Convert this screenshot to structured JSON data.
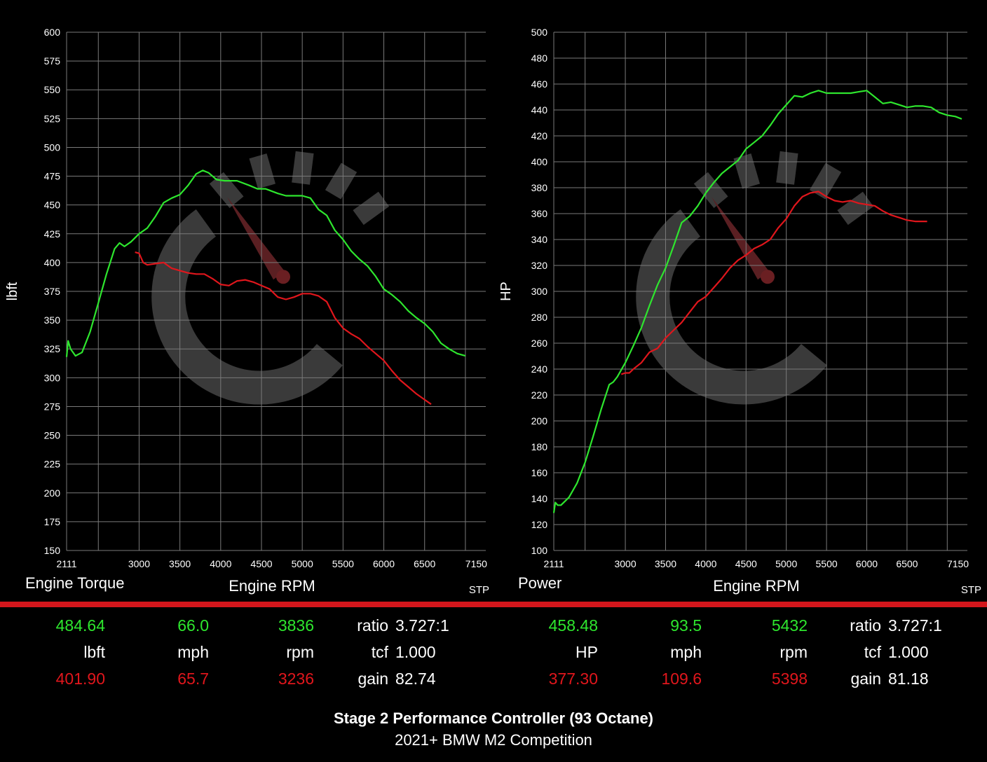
{
  "footer": {
    "title": "Stage 2 Performance Controller (93 Octane)",
    "subtitle": "2021+ BMW M2 Competition"
  },
  "colors": {
    "after": "#2ee62e",
    "before": "#e0161c",
    "divider": "#d4161c",
    "watermark": "#3a3a3a"
  },
  "watermark_icon": "tachometer-c-logo",
  "panels": [
    {
      "caption": "Engine Torque",
      "xlabel": "Engine RPM",
      "ylabel": "lbft",
      "correction": "STP",
      "readout": {
        "after": {
          "value": "484.64",
          "speed": "66.0",
          "rpm": "3836"
        },
        "units": {
          "value": "lbft",
          "speed": "mph",
          "rpm": "rpm"
        },
        "before": {
          "value": "401.90",
          "speed": "65.7",
          "rpm": "3236"
        },
        "ratio_label": "ratio",
        "ratio": "3.727:1",
        "tcf_label": "tcf",
        "tcf": "1.000",
        "gain_label": "gain",
        "gain": "82.74"
      }
    },
    {
      "caption": "Power",
      "xlabel": "Engine RPM",
      "ylabel": "HP",
      "correction": "STP",
      "readout": {
        "after": {
          "value": "458.48",
          "speed": "93.5",
          "rpm": "5432"
        },
        "units": {
          "value": "HP",
          "speed": "mph",
          "rpm": "rpm"
        },
        "before": {
          "value": "377.30",
          "speed": "109.6",
          "rpm": "5398"
        },
        "ratio_label": "ratio",
        "ratio": "3.727:1",
        "tcf_label": "tcf",
        "tcf": "1.000",
        "gain_label": "gain",
        "gain": "81.18"
      }
    }
  ],
  "chart_data": [
    {
      "type": "line",
      "xlabel": "Engine RPM",
      "ylabel": "lbft",
      "xlim": [
        2111,
        7250
      ],
      "ylim": [
        150,
        600
      ],
      "x_ticks": [
        2111,
        3000,
        3500,
        4000,
        4500,
        5000,
        5500,
        6000,
        6500,
        7150
      ],
      "y_ticks": [
        150,
        175,
        200,
        225,
        250,
        275,
        300,
        325,
        350,
        375,
        400,
        425,
        450,
        475,
        500,
        525,
        550,
        575,
        600
      ],
      "grid": true,
      "series": [
        {
          "color": "#2ee62e",
          "points": [
            [
              2111,
              318
            ],
            [
              2130,
              332
            ],
            [
              2160,
              325
            ],
            [
              2220,
              319
            ],
            [
              2300,
              322
            ],
            [
              2400,
              340
            ],
            [
              2500,
              365
            ],
            [
              2600,
              390
            ],
            [
              2700,
              412
            ],
            [
              2760,
              417
            ],
            [
              2820,
              414
            ],
            [
              2900,
              418
            ],
            [
              3000,
              425
            ],
            [
              3100,
              430
            ],
            [
              3200,
              440
            ],
            [
              3300,
              452
            ],
            [
              3400,
              456
            ],
            [
              3500,
              459
            ],
            [
              3600,
              467
            ],
            [
              3700,
              477
            ],
            [
              3780,
              480
            ],
            [
              3850,
              478
            ],
            [
              3950,
              472
            ],
            [
              4050,
              471
            ],
            [
              4200,
              471
            ],
            [
              4350,
              467
            ],
            [
              4450,
              464
            ],
            [
              4550,
              464
            ],
            [
              4700,
              460
            ],
            [
              4800,
              458
            ],
            [
              5000,
              458
            ],
            [
              5100,
              456
            ],
            [
              5200,
              446
            ],
            [
              5300,
              441
            ],
            [
              5400,
              428
            ],
            [
              5500,
              420
            ],
            [
              5600,
              410
            ],
            [
              5700,
              403
            ],
            [
              5800,
              397
            ],
            [
              5900,
              388
            ],
            [
              6000,
              377
            ],
            [
              6100,
              372
            ],
            [
              6200,
              366
            ],
            [
              6300,
              358
            ],
            [
              6400,
              352
            ],
            [
              6500,
              347
            ],
            [
              6600,
              340
            ],
            [
              6700,
              330
            ],
            [
              6800,
              325
            ],
            [
              6900,
              321
            ],
            [
              7000,
              319
            ]
          ]
        },
        {
          "color": "#e0161c",
          "points": [
            [
              2950,
              409
            ],
            [
              3000,
              408
            ],
            [
              3050,
              400
            ],
            [
              3100,
              398
            ],
            [
              3200,
              399
            ],
            [
              3300,
              400
            ],
            [
              3400,
              395
            ],
            [
              3500,
              393
            ],
            [
              3600,
              391
            ],
            [
              3700,
              390
            ],
            [
              3800,
              390
            ],
            [
              3900,
              386
            ],
            [
              4000,
              381
            ],
            [
              4100,
              380
            ],
            [
              4200,
              384
            ],
            [
              4300,
              385
            ],
            [
              4400,
              383
            ],
            [
              4500,
              380
            ],
            [
              4600,
              377
            ],
            [
              4700,
              370
            ],
            [
              4800,
              368
            ],
            [
              4900,
              370
            ],
            [
              5000,
              373
            ],
            [
              5100,
              373
            ],
            [
              5200,
              371
            ],
            [
              5300,
              366
            ],
            [
              5400,
              352
            ],
            [
              5500,
              343
            ],
            [
              5600,
              338
            ],
            [
              5700,
              334
            ],
            [
              5800,
              327
            ],
            [
              5900,
              321
            ],
            [
              6000,
              315
            ],
            [
              6100,
              306
            ],
            [
              6200,
              298
            ],
            [
              6300,
              292
            ],
            [
              6400,
              286
            ],
            [
              6500,
              281
            ],
            [
              6580,
              277
            ]
          ]
        }
      ]
    },
    {
      "type": "line",
      "xlabel": "Engine RPM",
      "ylabel": "HP",
      "xlim": [
        2111,
        7250
      ],
      "ylim": [
        100,
        500
      ],
      "x_ticks": [
        2111,
        3000,
        3500,
        4000,
        4500,
        5000,
        5500,
        6000,
        6500,
        7150
      ],
      "y_ticks": [
        100,
        120,
        140,
        160,
        180,
        200,
        220,
        240,
        260,
        280,
        300,
        320,
        340,
        360,
        380,
        400,
        420,
        440,
        460,
        480,
        500
      ],
      "grid": true,
      "series": [
        {
          "color": "#2ee62e",
          "points": [
            [
              2111,
              129
            ],
            [
              2130,
              137
            ],
            [
              2160,
              135
            ],
            [
              2200,
              135
            ],
            [
              2300,
              141
            ],
            [
              2400,
              152
            ],
            [
              2500,
              168
            ],
            [
              2600,
              188
            ],
            [
              2700,
              209
            ],
            [
              2800,
              228
            ],
            [
              2850,
              230
            ],
            [
              2900,
              234
            ],
            [
              3000,
              245
            ],
            [
              3100,
              258
            ],
            [
              3200,
              272
            ],
            [
              3300,
              289
            ],
            [
              3400,
              305
            ],
            [
              3500,
              318
            ],
            [
              3600,
              335
            ],
            [
              3700,
              353
            ],
            [
              3800,
              358
            ],
            [
              3900,
              366
            ],
            [
              4000,
              376
            ],
            [
              4100,
              384
            ],
            [
              4200,
              391
            ],
            [
              4300,
              396
            ],
            [
              4400,
              401
            ],
            [
              4500,
              410
            ],
            [
              4600,
              415
            ],
            [
              4700,
              420
            ],
            [
              4800,
              428
            ],
            [
              4900,
              437
            ],
            [
              5000,
              444
            ],
            [
              5100,
              451
            ],
            [
              5200,
              450
            ],
            [
              5300,
              453
            ],
            [
              5400,
              455
            ],
            [
              5500,
              453
            ],
            [
              5600,
              453
            ],
            [
              5700,
              453
            ],
            [
              5800,
              453
            ],
            [
              5900,
              454
            ],
            [
              6000,
              455
            ],
            [
              6100,
              450
            ],
            [
              6200,
              445
            ],
            [
              6300,
              446
            ],
            [
              6400,
              444
            ],
            [
              6500,
              442
            ],
            [
              6600,
              443
            ],
            [
              6700,
              443
            ],
            [
              6800,
              442
            ],
            [
              6900,
              438
            ],
            [
              7000,
              436
            ],
            [
              7100,
              435
            ],
            [
              7180,
              433
            ]
          ]
        },
        {
          "color": "#e0161c",
          "points": [
            [
              2950,
              236
            ],
            [
              3000,
              237
            ],
            [
              3050,
              237
            ],
            [
              3100,
              240
            ],
            [
              3200,
              245
            ],
            [
              3300,
              253
            ],
            [
              3400,
              256
            ],
            [
              3500,
              264
            ],
            [
              3600,
              270
            ],
            [
              3700,
              276
            ],
            [
              3800,
              284
            ],
            [
              3900,
              292
            ],
            [
              4000,
              296
            ],
            [
              4100,
              303
            ],
            [
              4200,
              310
            ],
            [
              4300,
              318
            ],
            [
              4400,
              324
            ],
            [
              4500,
              328
            ],
            [
              4600,
              333
            ],
            [
              4700,
              336
            ],
            [
              4800,
              340
            ],
            [
              4900,
              349
            ],
            [
              5000,
              356
            ],
            [
              5100,
              366
            ],
            [
              5200,
              373
            ],
            [
              5300,
              376
            ],
            [
              5400,
              377
            ],
            [
              5500,
              373
            ],
            [
              5600,
              370
            ],
            [
              5700,
              369
            ],
            [
              5800,
              370
            ],
            [
              5900,
              368
            ],
            [
              6000,
              367
            ],
            [
              6100,
              366
            ],
            [
              6200,
              362
            ],
            [
              6300,
              359
            ],
            [
              6400,
              357
            ],
            [
              6500,
              355
            ],
            [
              6600,
              354
            ],
            [
              6700,
              354
            ],
            [
              6750,
              354
            ]
          ]
        }
      ]
    }
  ]
}
